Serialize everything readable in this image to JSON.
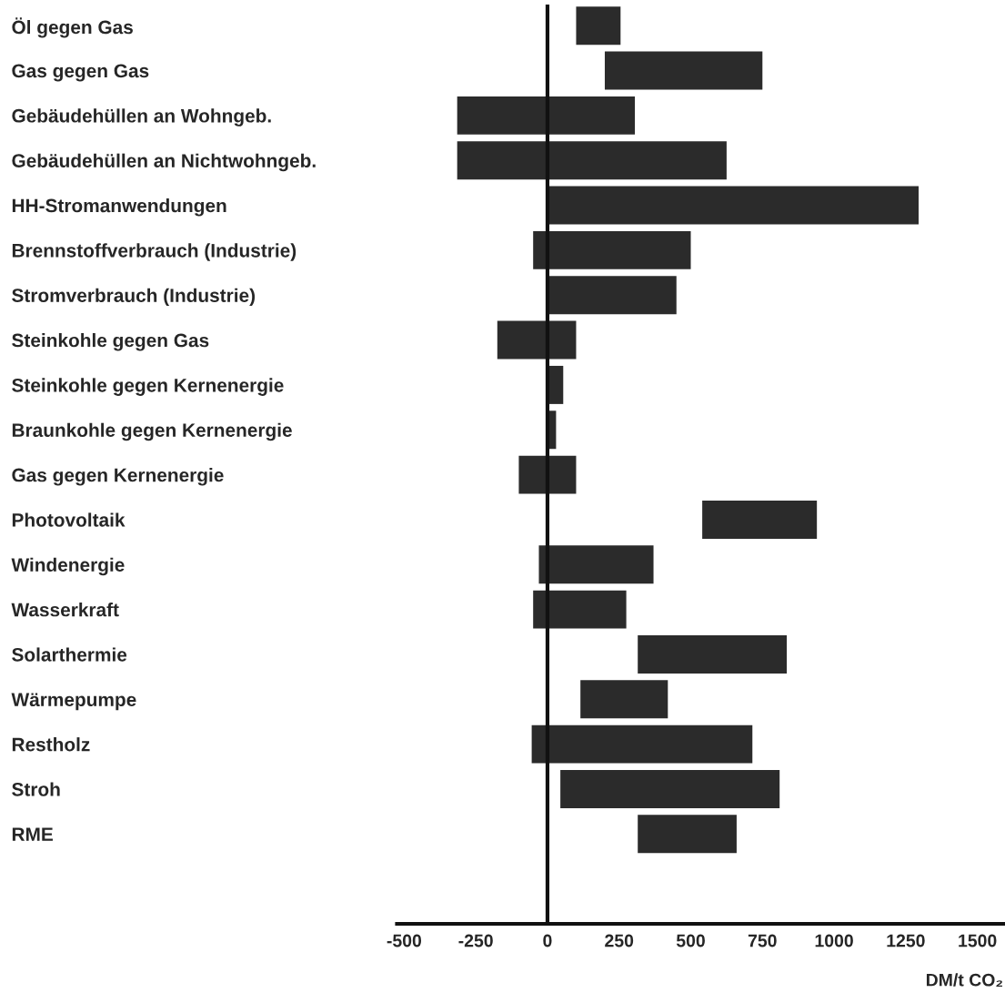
{
  "chart_data": {
    "type": "bar",
    "orientation": "horizontal",
    "categories": [
      "Öl gegen Gas",
      "Gas gegen Gas",
      "Gebäudehüllen an Wohngeb.",
      "Gebäudehüllen an Nichtwohngeb.",
      "HH-Stromanwendungen",
      "Brennstoffverbrauch (Industrie)",
      "Stromverbrauch (Industrie)",
      "Steinkohle gegen Gas",
      "Steinkohle gegen Kernenergie",
      "Braunkohle gegen Kernenergie",
      "Gas gegen Kernenergie",
      "Photovoltaik",
      "Windenergie",
      "Wasserkraft",
      "Solarthermie",
      "Wärmepumpe",
      "Restholz",
      "Stroh",
      "RME"
    ],
    "base": [
      100,
      200,
      -315,
      -315,
      0,
      -50,
      0,
      -175,
      0,
      0,
      -100,
      540,
      -30,
      -50,
      315,
      115,
      -55,
      45,
      315
    ],
    "values": [
      155,
      550,
      620,
      940,
      1295,
      550,
      450,
      275,
      55,
      30,
      200,
      400,
      400,
      325,
      520,
      305,
      770,
      765,
      345
    ],
    "color": "#2b2b2b",
    "xlim": [
      -525,
      1590
    ],
    "xticks": [
      -500,
      -250,
      0,
      250,
      500,
      750,
      1000,
      1250,
      1500
    ],
    "xlabel": "DM/t CO₂",
    "ref_lines": [
      {
        "axis": "x",
        "value": 0,
        "color": "#111111"
      }
    ],
    "grid": false,
    "legend": false
  }
}
